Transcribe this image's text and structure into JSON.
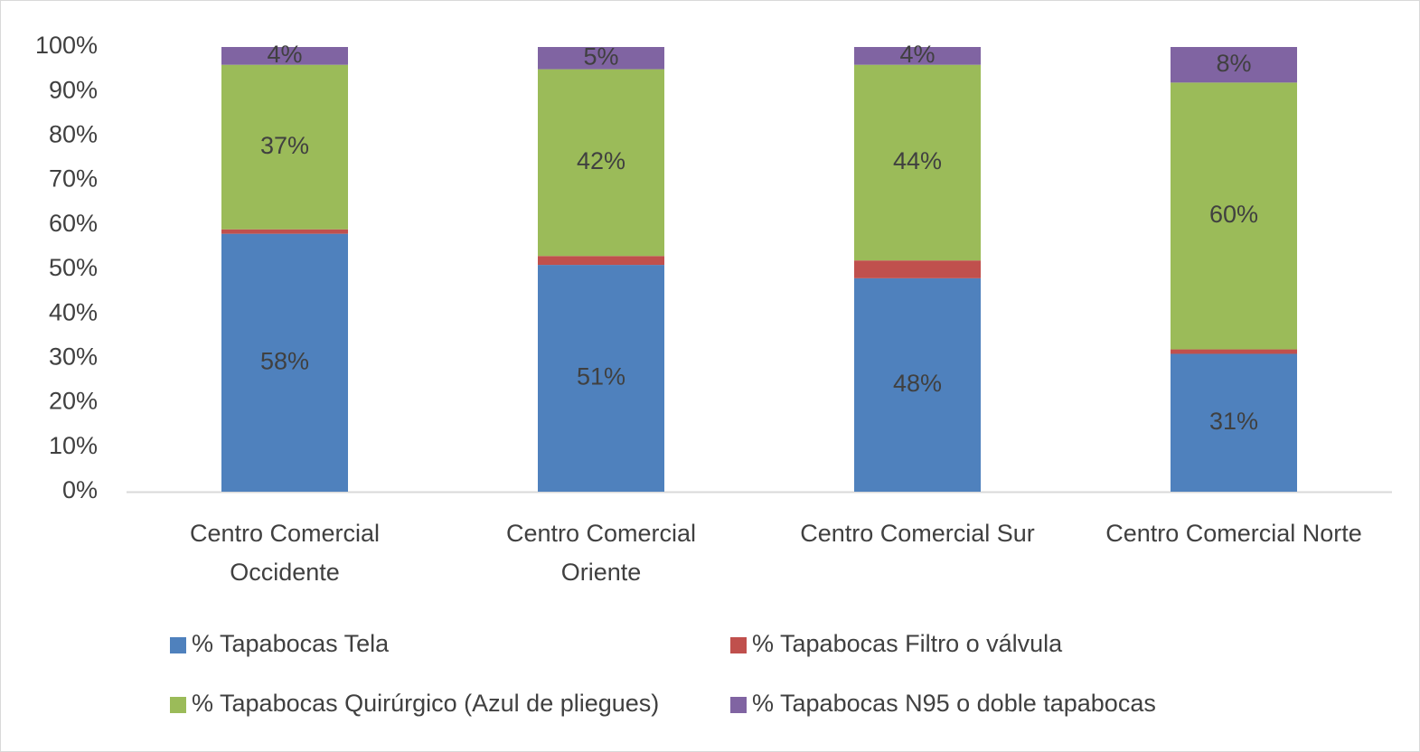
{
  "chart_data": {
    "type": "stacked_bar",
    "categories": [
      [
        "Centro Comercial",
        "Occidente"
      ],
      [
        "Centro Comercial",
        "Oriente"
      ],
      [
        "Centro Comercial Sur"
      ],
      [
        "Centro Comercial Norte"
      ]
    ],
    "series": [
      {
        "name": "% Tapabocas Tela",
        "color": "#4f81bd",
        "values": [
          58,
          51,
          48,
          31
        ],
        "value_labels": [
          "58%",
          "51%",
          "48%",
          "31%"
        ]
      },
      {
        "name": "% Tapabocas Filtro o válvula",
        "color": "#c0504d",
        "values": [
          1,
          2,
          4,
          1
        ]
      },
      {
        "name": "% Tapabocas Quirúrgico (Azul de pliegues)",
        "color": "#9bbb59",
        "values": [
          37,
          42,
          44,
          60
        ],
        "value_labels": [
          "37%",
          "42%",
          "44%",
          "60%"
        ]
      },
      {
        "name": "% Tapabocas N95 o doble tapabocas",
        "color": "#8064a2",
        "values": [
          4,
          5,
          4,
          8
        ],
        "value_labels": [
          "4%",
          "5%",
          "4%",
          "8%"
        ]
      }
    ],
    "ylim": [
      0,
      100
    ],
    "yticks": [
      {
        "value": 0,
        "label": "0%"
      },
      {
        "value": 10,
        "label": "10%"
      },
      {
        "value": 20,
        "label": "20%"
      },
      {
        "value": 30,
        "label": "30%"
      },
      {
        "value": 40,
        "label": "40%"
      },
      {
        "value": 50,
        "label": "50%"
      },
      {
        "value": 60,
        "label": "60%"
      },
      {
        "value": 70,
        "label": "70%"
      },
      {
        "value": 80,
        "label": "80%"
      },
      {
        "value": 90,
        "label": "90%"
      },
      {
        "value": 100,
        "label": "100%"
      }
    ],
    "grid": false,
    "legend": "bottom"
  }
}
